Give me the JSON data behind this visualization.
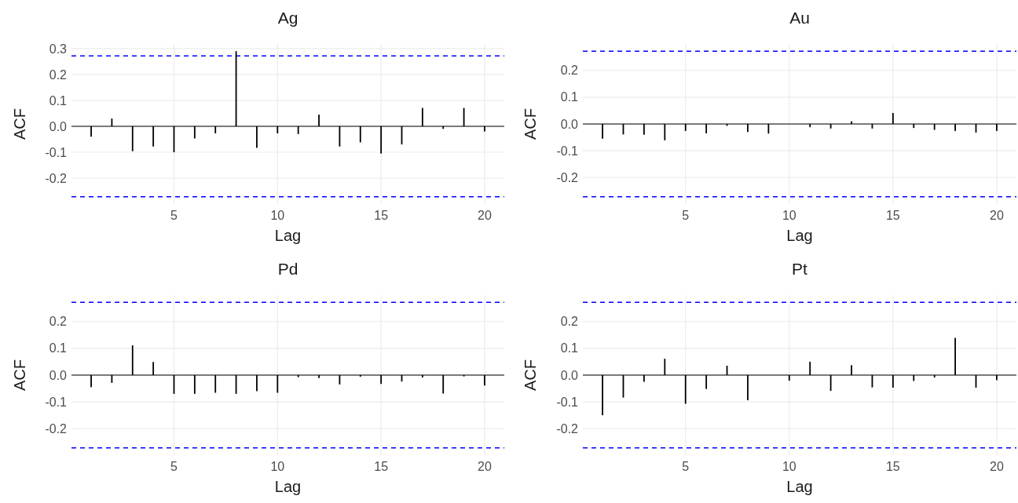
{
  "chart_data": [
    {
      "type": "bar",
      "title": "Ag",
      "xlabel": "Lag",
      "ylabel": "ACF",
      "x": [
        1,
        2,
        3,
        4,
        5,
        6,
        7,
        8,
        9,
        10,
        11,
        12,
        13,
        14,
        15,
        16,
        17,
        18,
        19,
        20
      ],
      "series": [
        {
          "color": "#000000",
          "values": [
            -0.04,
            0.03,
            -0.096,
            -0.078,
            -0.1,
            -0.047,
            -0.027,
            0.29,
            -0.083,
            -0.027,
            -0.03,
            0.045,
            -0.078,
            -0.062,
            -0.105,
            -0.07,
            0.071,
            -0.01,
            0.071,
            -0.02
          ]
        }
      ],
      "xlim": [
        0.05,
        20.95
      ],
      "xticks": [
        5,
        10,
        15,
        20
      ],
      "ylim": [
        -0.3,
        0.318
      ],
      "yticks": [
        {
          "value": -0.2,
          "label": "-0.2"
        },
        {
          "value": -0.1,
          "label": "-0.1"
        },
        {
          "value": 0,
          "label": "0.0"
        },
        0.1,
        0.2,
        0.3
      ],
      "grid": true,
      "ref_lines": [
        {
          "axis": "y",
          "value": 0,
          "color": "#000000",
          "line_style": "solid"
        },
        {
          "axis": "y",
          "value": 0.272,
          "color": "#0000ff",
          "line_style": "dashed"
        },
        {
          "axis": "y",
          "value": -0.272,
          "color": "#0000ff",
          "line_style": "dashed"
        }
      ]
    },
    {
      "type": "bar",
      "title": "Au",
      "xlabel": "Lag",
      "ylabel": "ACF",
      "x": [
        1,
        2,
        3,
        4,
        5,
        6,
        7,
        8,
        9,
        10,
        11,
        12,
        13,
        14,
        15,
        16,
        17,
        18,
        19,
        20
      ],
      "series": [
        {
          "color": "#000000",
          "values": [
            -0.055,
            -0.039,
            -0.04,
            -0.061,
            -0.026,
            -0.035,
            -0.007,
            -0.03,
            -0.036,
            null,
            -0.012,
            -0.017,
            0.01,
            -0.017,
            0.041,
            -0.015,
            -0.022,
            -0.026,
            -0.032,
            -0.026
          ]
        }
      ],
      "xlim": [
        0.05,
        20.95
      ],
      "xticks": [
        5,
        10,
        15,
        20
      ],
      "ylim": [
        -0.299,
        0.299
      ],
      "yticks": [
        {
          "value": -0.2,
          "label": "-0.2"
        },
        {
          "value": -0.1,
          "label": "-0.1"
        },
        {
          "value": 0,
          "label": "0.0"
        },
        0.1,
        0.2
      ],
      "grid": true,
      "ref_lines": [
        {
          "axis": "y",
          "value": 0,
          "color": "#000000",
          "line_style": "solid"
        },
        {
          "axis": "y",
          "value": 0.272,
          "color": "#0000ff",
          "line_style": "dashed"
        },
        {
          "axis": "y",
          "value": -0.272,
          "color": "#0000ff",
          "line_style": "dashed"
        }
      ]
    },
    {
      "type": "bar",
      "title": "Pd",
      "xlabel": "Lag",
      "ylabel": "ACF",
      "x": [
        1,
        2,
        3,
        4,
        5,
        6,
        7,
        8,
        9,
        10,
        11,
        12,
        13,
        14,
        15,
        16,
        17,
        18,
        19,
        20
      ],
      "series": [
        {
          "color": "#000000",
          "values": [
            -0.045,
            -0.029,
            0.111,
            0.049,
            -0.07,
            -0.07,
            -0.066,
            -0.07,
            -0.06,
            -0.066,
            -0.008,
            -0.011,
            -0.035,
            -0.006,
            -0.033,
            -0.024,
            -0.009,
            -0.069,
            -0.005,
            -0.039
          ]
        }
      ],
      "xlim": [
        0.05,
        20.95
      ],
      "xticks": [
        5,
        10,
        15,
        20
      ],
      "ylim": [
        -0.299,
        0.299
      ],
      "yticks": [
        {
          "value": -0.2,
          "label": "-0.2"
        },
        {
          "value": -0.1,
          "label": "-0.1"
        },
        {
          "value": 0,
          "label": "0.0"
        },
        0.1,
        0.2
      ],
      "grid": true,
      "ref_lines": [
        {
          "axis": "y",
          "value": 0,
          "color": "#000000",
          "line_style": "solid"
        },
        {
          "axis": "y",
          "value": 0.272,
          "color": "#0000ff",
          "line_style": "dashed"
        },
        {
          "axis": "y",
          "value": -0.272,
          "color": "#0000ff",
          "line_style": "dashed"
        }
      ]
    },
    {
      "type": "bar",
      "title": "Pt",
      "xlabel": "Lag",
      "ylabel": "ACF",
      "x": [
        1,
        2,
        3,
        4,
        5,
        6,
        7,
        8,
        9,
        10,
        11,
        12,
        13,
        14,
        15,
        16,
        17,
        18,
        19,
        20
      ],
      "series": [
        {
          "color": "#000000",
          "values": [
            -0.15,
            -0.084,
            -0.025,
            0.061,
            -0.107,
            -0.052,
            0.035,
            -0.094,
            null,
            -0.021,
            0.05,
            -0.059,
            0.037,
            -0.046,
            -0.047,
            -0.022,
            -0.009,
            0.139,
            -0.047,
            -0.019
          ]
        }
      ],
      "xlim": [
        0.05,
        20.95
      ],
      "xticks": [
        5,
        10,
        15,
        20
      ],
      "ylim": [
        -0.299,
        0.299
      ],
      "yticks": [
        {
          "value": -0.2,
          "label": "-0.2"
        },
        {
          "value": -0.1,
          "label": "-0.1"
        },
        {
          "value": 0,
          "label": "0.0"
        },
        0.1,
        0.2
      ],
      "grid": true,
      "ref_lines": [
        {
          "axis": "y",
          "value": 0,
          "color": "#000000",
          "line_style": "solid"
        },
        {
          "axis": "y",
          "value": 0.272,
          "color": "#0000ff",
          "line_style": "dashed"
        },
        {
          "axis": "y",
          "value": -0.272,
          "color": "#0000ff",
          "line_style": "dashed"
        }
      ]
    }
  ]
}
